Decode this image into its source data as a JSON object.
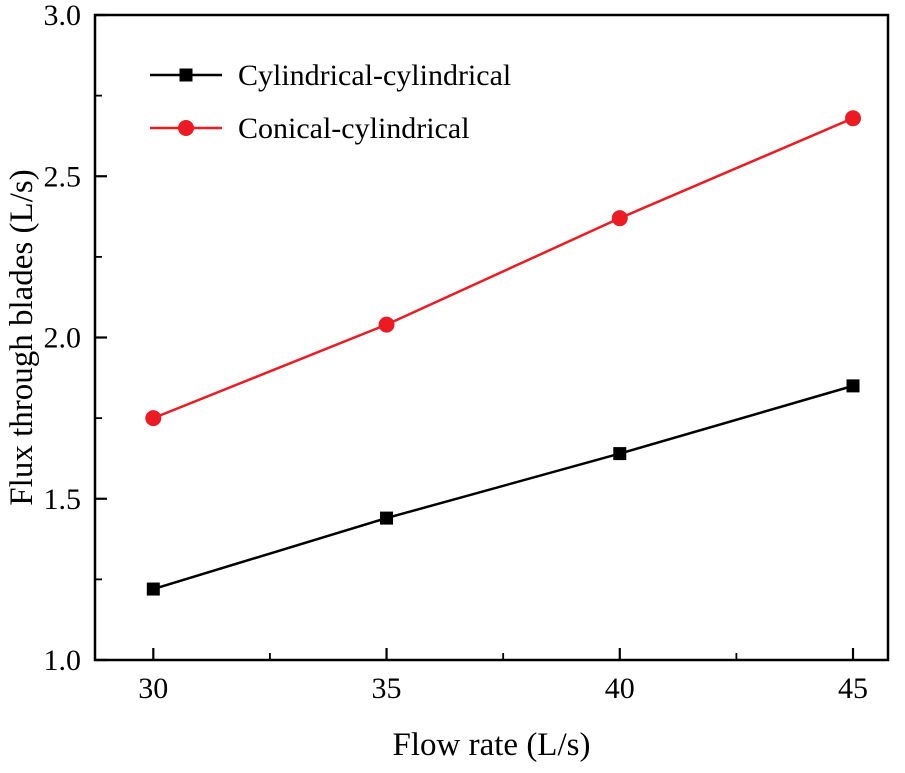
{
  "chart_data": {
    "type": "line",
    "title": "",
    "x": [
      30,
      35,
      40,
      45
    ],
    "series": [
      {
        "name": "Cylindrical-cylindrical",
        "color": "#000000",
        "marker": "square",
        "values": [
          1.22,
          1.44,
          1.64,
          1.85
        ]
      },
      {
        "name": "Conical-cylindrical",
        "color": "#ec1b23",
        "marker": "circle",
        "values": [
          1.75,
          2.04,
          2.37,
          2.68
        ]
      }
    ],
    "xlabel": "Flow rate (L/s)",
    "ylabel": "Flux through blades (L/s)",
    "xlim": [
      28.75,
      45.75
    ],
    "ylim": [
      1.0,
      3.0
    ],
    "xticks": [
      30,
      35,
      40,
      45
    ],
    "xtick_labels": [
      "30",
      "35",
      "40",
      "45"
    ],
    "yticks": [
      1.0,
      1.5,
      2.0,
      2.5,
      3.0
    ],
    "ytick_labels": [
      "1.0",
      "1.5",
      "2.0",
      "2.5",
      "3.0"
    ],
    "grid": false,
    "frame": "box",
    "tick_direction": "in",
    "legend_position": "top-left-inside"
  }
}
